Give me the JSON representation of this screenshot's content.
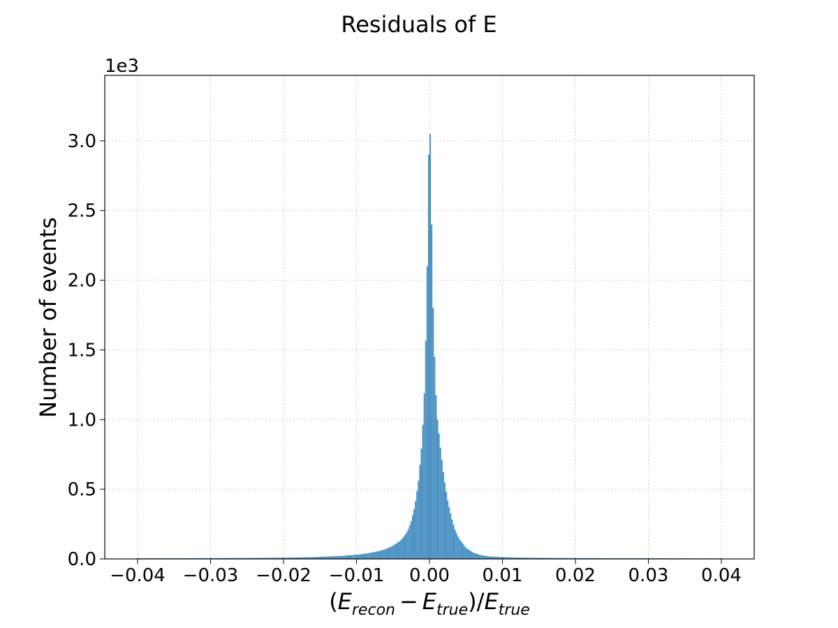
{
  "colors": {
    "bar": "#4c93c3",
    "grid": "#c8c8c8",
    "axis": "#000000"
  },
  "chart_data": {
    "type": "bar",
    "title": "Residuals of E",
    "ylabel": "Number of events",
    "xlabel": {
      "text": "(E_recon − E_true)/E_true",
      "parts": {
        "open": "(",
        "E": "E",
        "recon": "recon",
        "minus": "−",
        "true": "true",
        "close": ")",
        "slash": "/"
      }
    },
    "y_offset_text": "1e3",
    "xlim": [
      -0.0445,
      0.0445
    ],
    "ylim": [
      0,
      3.47
    ],
    "y_unit_multiplier": 1000,
    "grid": true,
    "grid_style": "dotted",
    "legend": "none",
    "xticks": [
      {
        "value": -0.04,
        "label": "−0.04"
      },
      {
        "value": -0.03,
        "label": "−0.03"
      },
      {
        "value": -0.02,
        "label": "−0.02"
      },
      {
        "value": -0.01,
        "label": "−0.01"
      },
      {
        "value": 0.0,
        "label": "0.00"
      },
      {
        "value": 0.01,
        "label": "0.01"
      },
      {
        "value": 0.02,
        "label": "0.02"
      },
      {
        "value": 0.03,
        "label": "0.03"
      },
      {
        "value": 0.04,
        "label": "0.04"
      }
    ],
    "yticks": [
      {
        "value": 0.0,
        "label": "0.0"
      },
      {
        "value": 0.5,
        "label": "0.5"
      },
      {
        "value": 1.0,
        "label": "1.0"
      },
      {
        "value": 1.5,
        "label": "1.5"
      },
      {
        "value": 2.0,
        "label": "2.0"
      },
      {
        "value": 2.5,
        "label": "2.5"
      },
      {
        "value": 3.0,
        "label": "3.0"
      }
    ],
    "bin_width": 0.0002,
    "bins": [
      {
        "x": -0.04,
        "y": 0.005
      },
      {
        "x": -0.035,
        "y": 0.005
      },
      {
        "x": -0.03,
        "y": 0.006
      },
      {
        "x": -0.025,
        "y": 0.007
      },
      {
        "x": -0.02,
        "y": 0.009
      },
      {
        "x": -0.018,
        "y": 0.011
      },
      {
        "x": -0.016,
        "y": 0.013
      },
      {
        "x": -0.014,
        "y": 0.017
      },
      {
        "x": -0.012,
        "y": 0.022
      },
      {
        "x": -0.01,
        "y": 0.03
      },
      {
        "x": -0.009,
        "y": 0.036
      },
      {
        "x": -0.008,
        "y": 0.045
      },
      {
        "x": -0.007,
        "y": 0.055
      },
      {
        "x": -0.006,
        "y": 0.07
      },
      {
        "x": -0.005,
        "y": 0.095
      },
      {
        "x": -0.004,
        "y": 0.13
      },
      {
        "x": -0.0035,
        "y": 0.16
      },
      {
        "x": -0.003,
        "y": 0.2
      },
      {
        "x": -0.0025,
        "y": 0.27
      },
      {
        "x": -0.002,
        "y": 0.38
      },
      {
        "x": -0.0015,
        "y": 0.56
      },
      {
        "x": -0.001,
        "y": 0.85
      },
      {
        "x": -0.0006,
        "y": 1.3
      },
      {
        "x": -0.0003,
        "y": 2.1
      },
      {
        "x": -0.0001,
        "y": 2.9
      },
      {
        "x": 0.0,
        "y": 3.3
      },
      {
        "x": 0.0002,
        "y": 2.8
      },
      {
        "x": 0.0004,
        "y": 2.0
      },
      {
        "x": 0.0006,
        "y": 1.6
      },
      {
        "x": 0.0008,
        "y": 1.3
      },
      {
        "x": 0.001,
        "y": 1.05
      },
      {
        "x": 0.0015,
        "y": 0.8
      },
      {
        "x": 0.002,
        "y": 0.58
      },
      {
        "x": 0.0025,
        "y": 0.42
      },
      {
        "x": 0.003,
        "y": 0.3
      },
      {
        "x": 0.0035,
        "y": 0.21
      },
      {
        "x": 0.004,
        "y": 0.15
      },
      {
        "x": 0.005,
        "y": 0.08
      },
      {
        "x": 0.006,
        "y": 0.045
      },
      {
        "x": 0.007,
        "y": 0.028
      },
      {
        "x": 0.008,
        "y": 0.019
      },
      {
        "x": 0.01,
        "y": 0.013
      },
      {
        "x": 0.012,
        "y": 0.01
      },
      {
        "x": 0.015,
        "y": 0.008
      },
      {
        "x": 0.02,
        "y": 0.006
      },
      {
        "x": 0.025,
        "y": 0.005
      },
      {
        "x": 0.03,
        "y": 0.005
      },
      {
        "x": 0.035,
        "y": 0.004
      },
      {
        "x": 0.04,
        "y": 0.004
      }
    ]
  }
}
